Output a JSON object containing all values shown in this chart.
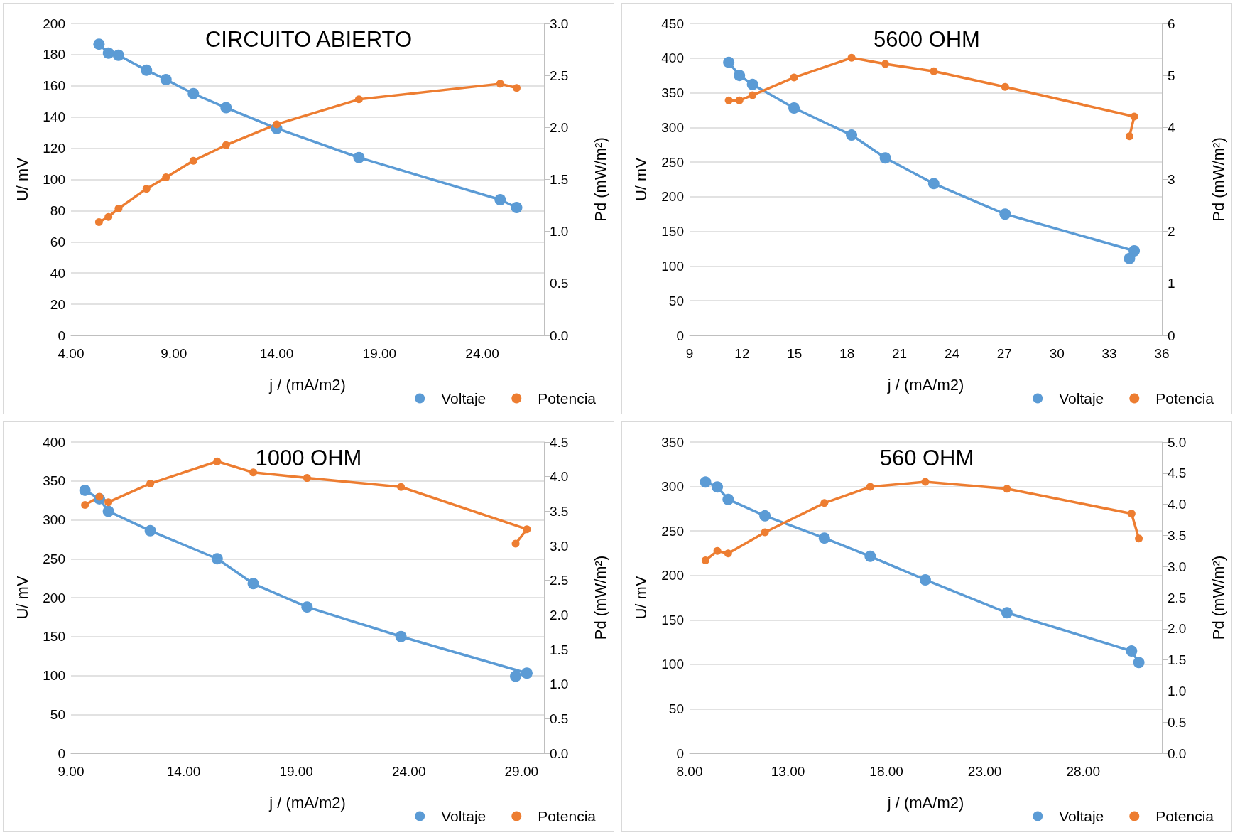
{
  "chart_data": [
    {
      "type": "line",
      "title": "CIRCUITO ABIERTO",
      "xlabel": "j / (mA/m2)",
      "ylabel": "U/ mV",
      "y2label": "Pd (mW/m²)",
      "x": [
        5.36,
        5.82,
        6.31,
        7.67,
        8.62,
        9.95,
        11.54,
        14.0,
        18.0,
        24.87,
        25.67
      ],
      "series": [
        {
          "name": "Voltaje",
          "color": "#5b9bd5",
          "values": [
            186.7,
            181,
            179.6,
            170,
            164,
            155,
            146,
            132.7,
            114,
            87,
            82
          ]
        },
        {
          "name": "Potencia",
          "color": "#ed7d31",
          "axis": "y2",
          "values": [
            1.09,
            1.14,
            1.22,
            1.41,
            1.52,
            1.68,
            1.83,
            2.03,
            2.27,
            2.42,
            2.38
          ]
        }
      ],
      "xlim": [
        4,
        27
      ],
      "xticks": [
        {
          "value": 4,
          "label": "4.00"
        },
        {
          "value": 9,
          "label": "9.00"
        },
        {
          "value": 14,
          "label": "14.00"
        },
        {
          "value": 19,
          "label": "19.00"
        },
        {
          "value": 24,
          "label": "24.00"
        }
      ],
      "ylim": [
        0,
        200
      ],
      "yticks": [
        0,
        20,
        40,
        60,
        80,
        100,
        120,
        140,
        160,
        180,
        200
      ],
      "y2lim": [
        0,
        3
      ],
      "y2ticks": [
        {
          "value": 0,
          "label": "0.0"
        },
        0.5,
        {
          "value": 1,
          "label": "1.0"
        },
        1.5,
        {
          "value": 2,
          "label": "2.0"
        },
        2.5,
        {
          "value": 3,
          "label": "3.0"
        }
      ],
      "grid": "y",
      "legend": "bottom right",
      "marker": "circle",
      "line_style": "solid"
    },
    {
      "type": "line",
      "title": "5600 OHM",
      "xlabel": "j / (mA/m2)",
      "ylabel": "U/ mV",
      "y2label": "Pd (mW/m²)",
      "x": [
        11.24,
        11.85,
        12.6,
        14.97,
        18.26,
        20.19,
        22.96,
        27.04,
        34.42,
        34.15
      ],
      "series": [
        {
          "name": "Voltaje",
          "color": "#5b9bd5",
          "values": [
            394,
            375,
            362,
            328,
            289,
            256,
            219,
            175,
            122,
            111
          ]
        },
        {
          "name": "Potencia",
          "color": "#ed7d31",
          "axis": "y2",
          "values": [
            4.52,
            4.52,
            4.62,
            4.96,
            5.34,
            5.22,
            5.08,
            4.78,
            4.21,
            3.83
          ]
        }
      ],
      "xlim": [
        9,
        36
      ],
      "xticks": [
        9,
        12,
        15,
        18,
        21,
        24,
        27,
        30,
        33,
        36
      ],
      "ylim": [
        0,
        450
      ],
      "yticks": [
        0,
        50,
        100,
        150,
        200,
        250,
        300,
        350,
        400,
        450
      ],
      "y2lim": [
        0,
        6
      ],
      "y2ticks": [
        0,
        1,
        2,
        3,
        4,
        5,
        6
      ],
      "grid": "y",
      "legend": "bottom right",
      "marker": "circle",
      "line_style": "solid"
    },
    {
      "type": "line",
      "title": "1000 OHM",
      "xlabel": "j / (mA/m2)",
      "ylabel": "U/ mV",
      "y2label": "Pd (mW/m²)",
      "x": [
        9.62,
        10.26,
        10.66,
        12.52,
        15.49,
        17.09,
        19.48,
        23.65,
        29.24,
        28.74
      ],
      "series": [
        {
          "name": "Voltaje",
          "color": "#5b9bd5",
          "values": [
            338,
            327,
            311,
            286,
            250,
            218,
            188,
            150,
            103,
            99
          ]
        },
        {
          "name": "Potencia",
          "color": "#ed7d31",
          "axis": "y2",
          "values": [
            3.59,
            3.71,
            3.63,
            3.9,
            4.22,
            4.06,
            3.98,
            3.85,
            3.24,
            3.03
          ]
        }
      ],
      "xlim": [
        9,
        30
      ],
      "xticks": [
        {
          "value": 9,
          "label": "9.00"
        },
        {
          "value": 14,
          "label": "14.00"
        },
        {
          "value": 19,
          "label": "19.00"
        },
        {
          "value": 24,
          "label": "24.00"
        },
        {
          "value": 29,
          "label": "29.00"
        }
      ],
      "ylim": [
        0,
        400
      ],
      "yticks": [
        0,
        50,
        100,
        150,
        200,
        250,
        300,
        350,
        400
      ],
      "y2lim": [
        0,
        4.5
      ],
      "y2ticks": [
        {
          "value": 0,
          "label": "0.0"
        },
        0.5,
        {
          "value": 1,
          "label": "1.0"
        },
        1.5,
        {
          "value": 2,
          "label": "2.0"
        },
        2.5,
        {
          "value": 3,
          "label": "3.0"
        },
        3.5,
        {
          "value": 4,
          "label": "4.0"
        },
        4.5
      ],
      "grid": "y",
      "legend": "bottom right",
      "marker": "circle",
      "line_style": "solid"
    },
    {
      "type": "line",
      "title": "560 OHM",
      "xlabel": "j / (mA/m2)",
      "ylabel": "U/ mV",
      "y2label": "Pd (mW/m²)",
      "x": [
        8.81,
        9.41,
        9.96,
        11.83,
        14.85,
        17.18,
        19.98,
        24.13,
        30.46,
        30.83
      ],
      "series": [
        {
          "name": "Voltaje",
          "color": "#5b9bd5",
          "values": [
            305,
            299.5,
            285.5,
            267,
            242,
            221.5,
            195,
            158,
            115,
            102
          ]
        },
        {
          "name": "Potencia",
          "color": "#ed7d31",
          "axis": "y2",
          "values": [
            3.1,
            3.25,
            3.21,
            3.55,
            4.02,
            4.28,
            4.36,
            4.25,
            3.85,
            3.45
          ]
        }
      ],
      "xlim": [
        8,
        32
      ],
      "xticks": [
        {
          "value": 8,
          "label": "8.00"
        },
        {
          "value": 13,
          "label": "13.00"
        },
        {
          "value": 18,
          "label": "18.00"
        },
        {
          "value": 23,
          "label": "23.00"
        },
        {
          "value": 28,
          "label": "28.00"
        }
      ],
      "ylim": [
        0,
        350
      ],
      "yticks": [
        0,
        50,
        100,
        150,
        200,
        250,
        300,
        350
      ],
      "y2lim": [
        0,
        5
      ],
      "y2ticks": [
        {
          "value": 0,
          "label": "0.0"
        },
        0.5,
        {
          "value": 1,
          "label": "1.0"
        },
        1.5,
        {
          "value": 2,
          "label": "2.0"
        },
        2.5,
        {
          "value": 3,
          "label": "3.0"
        },
        3.5,
        {
          "value": 4,
          "label": "4.0"
        },
        4.5,
        {
          "value": 5,
          "label": "5.0"
        }
      ],
      "grid": "y",
      "legend": "bottom right",
      "marker": "circle",
      "line_style": "solid"
    }
  ]
}
